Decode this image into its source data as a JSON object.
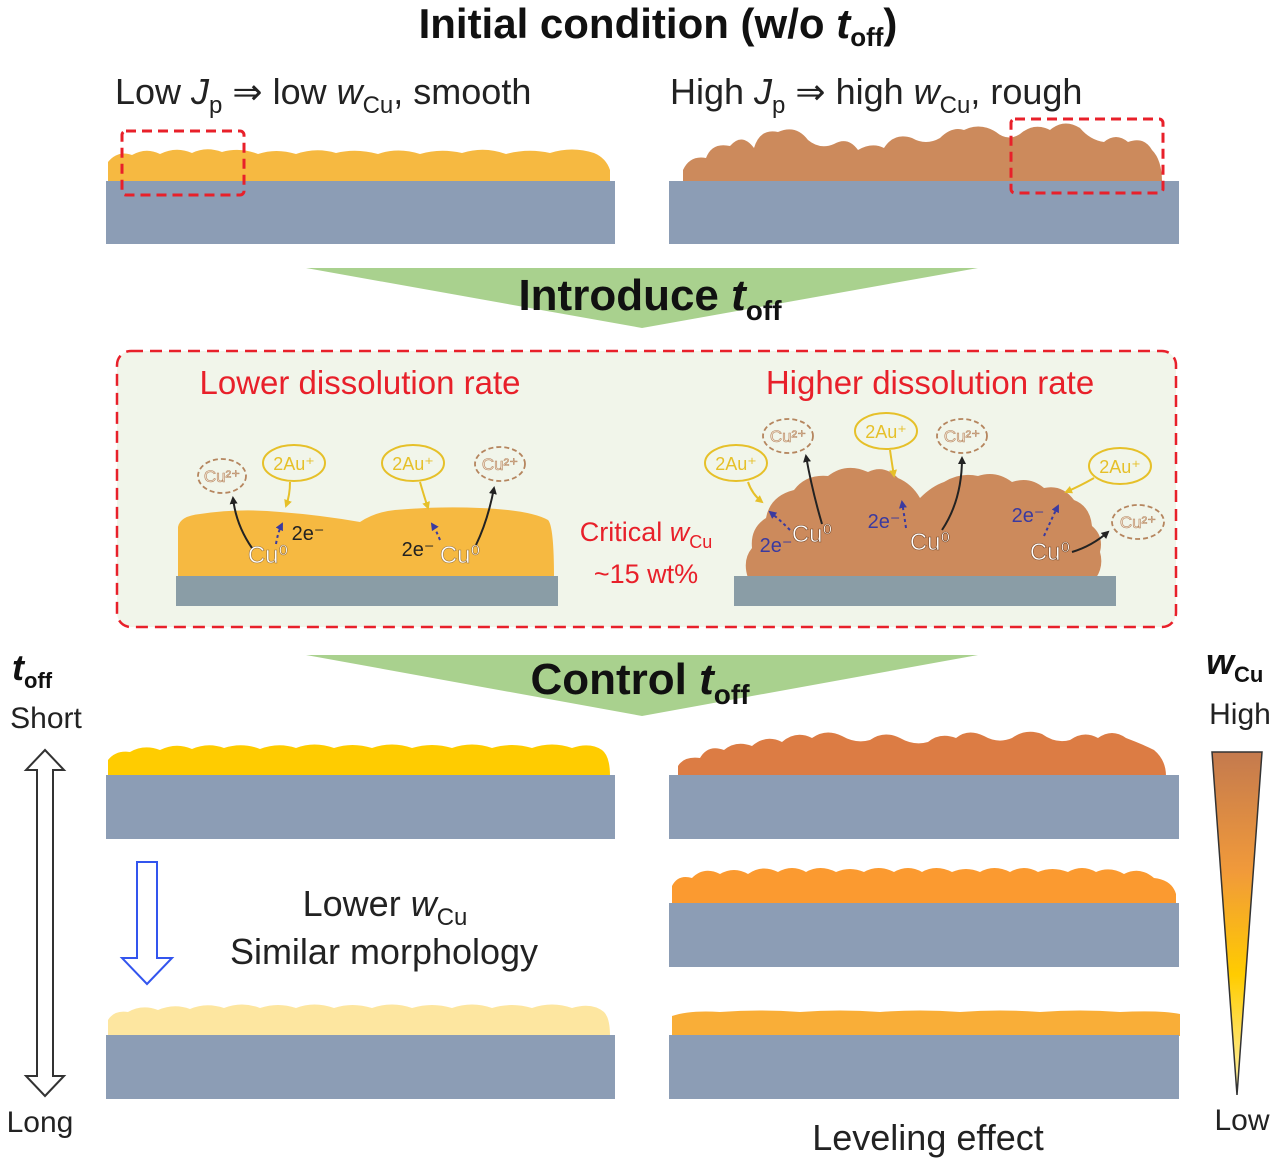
{
  "title": {
    "prefix": "Initial condition (w/o ",
    "t": "t",
    "sub": "off",
    "suffix": ")"
  },
  "initial": {
    "low": {
      "text1": "Low ",
      "J": "J",
      "Jsub": "p",
      "arrow": " ⇒ low ",
      "w": "w",
      "wsub": "Cu",
      "tail": ", smooth"
    },
    "high": {
      "text1": "High ",
      "J": "J",
      "Jsub": "p",
      "arrow": " ⇒ high ",
      "w": "w",
      "wsub": "Cu",
      "tail": ", rough"
    }
  },
  "introduce": {
    "prefix": "Introduce ",
    "t": "t",
    "sub": "off"
  },
  "mechanism": {
    "lower_title": "Lower dissolution rate",
    "higher_title": "Higher dissolution rate",
    "critical_line1_prefix": "Critical ",
    "critical_w": "w",
    "critical_wsub": "Cu",
    "critical_line2": "~15 wt%",
    "au_ion": "2Au⁺",
    "cu_ion": "Cu²⁺",
    "cu_atom": "Cu⁰",
    "electrons": "2e⁻"
  },
  "control": {
    "prefix": "Control ",
    "t": "t",
    "sub": "off"
  },
  "toff_axis": {
    "t": "t",
    "sub": "off",
    "short": "Short",
    "long": "Long"
  },
  "wcu_axis": {
    "w": "w",
    "sub": "Cu",
    "high": "High",
    "low": "Low"
  },
  "lower_note": {
    "prefix": "Lower ",
    "w": "w",
    "sub": "Cu",
    "line2": "Similar morphology"
  },
  "leveling": "Leveling effect",
  "colors": {
    "substrate": "#8c9db5",
    "substrate_dark": "#8a9da6",
    "gold": "#f6b941",
    "copper_rich": "#cc8a5c",
    "gold_bright": "#ffcc00",
    "gold_pale": "#fde6a0",
    "orange_dark": "#dc7c44",
    "orange_mid": "#fb9a30",
    "orange_light": "#f9ae38",
    "green_arrow": "#a9d18e",
    "panel_bg": "#f1f5ea",
    "red_text": "#e8202a",
    "au_yellow": "#e6c029",
    "cu_ring": "#b5855e",
    "e_blue": "#3a3aa0"
  }
}
